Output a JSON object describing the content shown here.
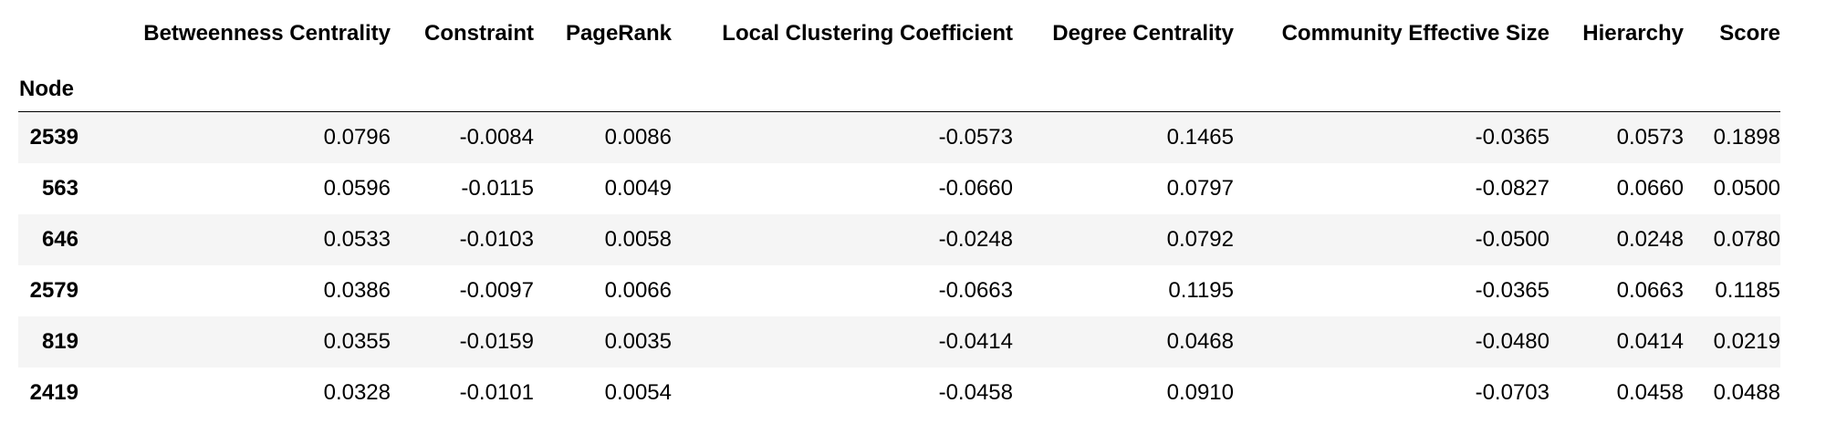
{
  "table": {
    "index_name": "Node",
    "columns": [
      "Betweenness Centrality",
      "Constraint",
      "PageRank",
      "Local Clustering Coefficient",
      "Degree Centrality",
      "Community Effective Size",
      "Hierarchy",
      "Score"
    ],
    "rows": [
      {
        "node": "2539",
        "values": [
          "0.0796",
          "-0.0084",
          "0.0086",
          "-0.0573",
          "0.1465",
          "-0.0365",
          "0.0573",
          "0.1898"
        ]
      },
      {
        "node": "563",
        "values": [
          "0.0596",
          "-0.0115",
          "0.0049",
          "-0.0660",
          "0.0797",
          "-0.0827",
          "0.0660",
          "0.0500"
        ]
      },
      {
        "node": "646",
        "values": [
          "0.0533",
          "-0.0103",
          "0.0058",
          "-0.0248",
          "0.0792",
          "-0.0500",
          "0.0248",
          "0.0780"
        ]
      },
      {
        "node": "2579",
        "values": [
          "0.0386",
          "-0.0097",
          "0.0066",
          "-0.0663",
          "0.1195",
          "-0.0365",
          "0.0663",
          "0.1185"
        ]
      },
      {
        "node": "819",
        "values": [
          "0.0355",
          "-0.0159",
          "0.0035",
          "-0.0414",
          "0.0468",
          "-0.0480",
          "0.0414",
          "0.0219"
        ]
      },
      {
        "node": "2419",
        "values": [
          "0.0328",
          "-0.0101",
          "0.0054",
          "-0.0458",
          "0.0910",
          "-0.0703",
          "0.0458",
          "0.0488"
        ]
      }
    ]
  }
}
